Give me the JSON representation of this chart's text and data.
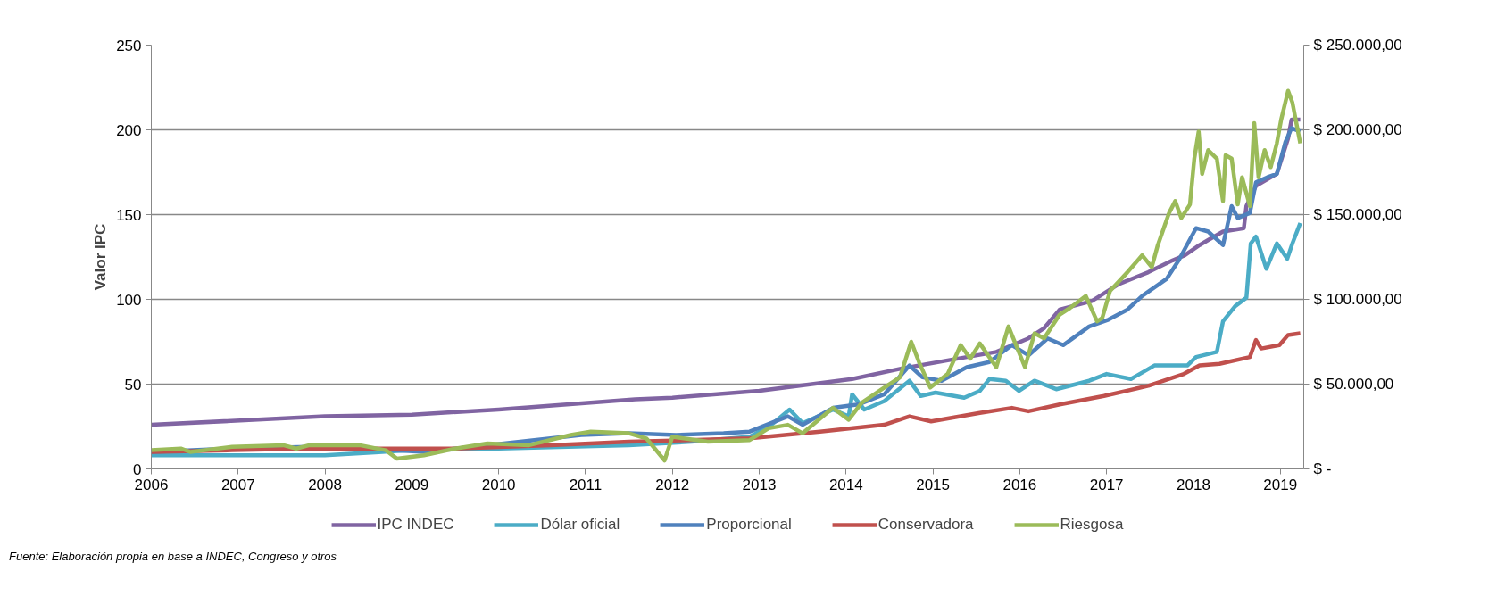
{
  "chart_data": {
    "type": "line",
    "ylabel": "Valor IPC",
    "xlim": [
      2006,
      2019.27
    ],
    "xticks": [
      2006,
      2007,
      2008,
      2009,
      2010,
      2011,
      2012,
      2013,
      2014,
      2015,
      2016,
      2017,
      2018,
      2019
    ],
    "ylim": [
      0,
      250
    ],
    "yticks": [
      0,
      50,
      100,
      150,
      200,
      250
    ],
    "y2lim": [
      0,
      250000
    ],
    "y2ticks": [
      {
        "value": 0,
        "label": "$ -"
      },
      {
        "value": 50000,
        "label": "$ 50.000,00"
      },
      {
        "value": 100000,
        "label": "$ 100.000,00"
      },
      {
        "value": 150000,
        "label": "$ 150.000,00"
      },
      {
        "value": 200000,
        "label": "$ 200.000,00"
      },
      {
        "value": 250000,
        "label": "$ 250.000,00"
      }
    ],
    "grid": "y",
    "legend": "bottom",
    "marker": "none",
    "line_style": "solid",
    "annotations": [
      "Fuente: Elaboración propia en base a INDEC, Congreso y otros"
    ],
    "series": [
      {
        "name": "IPC INDEC",
        "color": "#8064a2",
        "x": [
          2006,
          2008,
          2009,
          2010,
          2011.57,
          2012,
          2013,
          2014.07,
          2014.62,
          2015.17,
          2015.73,
          2016.1,
          2016.28,
          2016.46,
          2016.83,
          2017.14,
          2017.48,
          2017.76,
          2017.9,
          2018.07,
          2018.17,
          2018.34,
          2018.58,
          2018.61,
          2018.72,
          2018.96,
          2019.09,
          2019.13,
          2019.23
        ],
        "values": [
          26,
          31,
          32,
          35,
          41,
          42,
          46,
          53,
          59,
          64,
          69,
          77,
          83,
          94,
          99,
          109,
          116,
          123,
          126,
          132,
          135,
          140,
          142,
          155,
          167,
          174,
          195,
          206,
          206
        ]
      },
      {
        "name": "Dólar oficial",
        "color": "#4bacc6",
        "axis": "y2",
        "x": [
          2006,
          2008,
          2009,
          2010,
          2011.5,
          2012.22,
          2012.89,
          2013.14,
          2013.35,
          2013.5,
          2013.85,
          2014.03,
          2014.07,
          2014.21,
          2014.44,
          2014.73,
          2014.86,
          2015.03,
          2015.36,
          2015.54,
          2015.65,
          2015.84,
          2015.99,
          2016.17,
          2016.42,
          2016.8,
          2017.0,
          2017.28,
          2017.55,
          2017.93,
          2018.03,
          2018.27,
          2018.34,
          2018.48,
          2018.61,
          2018.66,
          2018.72,
          2018.84,
          2018.96,
          2019.08,
          2019.14,
          2019.23
        ],
        "values": [
          8000,
          8000,
          11000,
          12000,
          14000,
          16000,
          19000,
          26000,
          35000,
          27000,
          35000,
          31000,
          44000,
          35000,
          40000,
          52000,
          43000,
          45000,
          42000,
          46000,
          53000,
          52000,
          46000,
          52000,
          47000,
          52000,
          56000,
          53000,
          61000,
          61000,
          66000,
          69000,
          87000,
          96000,
          101000,
          133000,
          137000,
          118000,
          133000,
          124000,
          133000,
          145000
        ]
      },
      {
        "name": "Proporcional",
        "color": "#4f81bd",
        "axis": "y2",
        "x": [
          2006,
          2006.93,
          2007.82,
          2008.78,
          2009.14,
          2009.87,
          2010.95,
          2011.5,
          2012.04,
          2012.59,
          2012.89,
          2013.33,
          2013.5,
          2013.85,
          2014.14,
          2014.44,
          2014.73,
          2014.88,
          2015.1,
          2015.39,
          2015.65,
          2015.91,
          2016.1,
          2016.32,
          2016.5,
          2016.8,
          2017.02,
          2017.24,
          2017.41,
          2017.69,
          2017.83,
          2018.03,
          2018.17,
          2018.34,
          2018.44,
          2018.51,
          2018.65,
          2018.72,
          2018.85,
          2018.96,
          2019.06,
          2019.13,
          2019.23
        ],
        "values": [
          10000,
          12000,
          13000,
          11000,
          10000,
          14000,
          20000,
          21000,
          20000,
          21000,
          22000,
          31000,
          26000,
          36000,
          38000,
          44000,
          61000,
          54000,
          52000,
          60000,
          63000,
          73000,
          67000,
          77000,
          73000,
          84000,
          88000,
          94000,
          102000,
          112000,
          123000,
          142000,
          140000,
          132000,
          155000,
          148000,
          151000,
          169000,
          172000,
          174000,
          193000,
          201000,
          199000
        ]
      },
      {
        "name": "Conservadora",
        "color": "#c0504d",
        "axis": "y2",
        "x": [
          2006,
          2006.93,
          2007.82,
          2008.78,
          2009.5,
          2010.6,
          2011.5,
          2012.89,
          2013.7,
          2014.44,
          2014.73,
          2014.98,
          2015.54,
          2015.91,
          2016.1,
          2016.46,
          2016.97,
          2017.48,
          2017.89,
          2018.07,
          2018.3,
          2018.65,
          2018.72,
          2018.78,
          2018.99,
          2019.09,
          2019.23
        ],
        "values": [
          10000,
          11000,
          12000,
          12000,
          12000,
          14000,
          16000,
          18000,
          22000,
          26000,
          31000,
          28000,
          33000,
          36000,
          34000,
          38000,
          43000,
          49000,
          56000,
          61000,
          62000,
          66000,
          76000,
          71000,
          73000,
          79000,
          80000
        ]
      },
      {
        "name": "Riesgosa",
        "color": "#9bbb59",
        "axis": "y2",
        "x": [
          2006,
          2006.34,
          2006.45,
          2006.93,
          2007.52,
          2007.67,
          2007.82,
          2008.4,
          2008.7,
          2008.83,
          2009.14,
          2009.5,
          2009.87,
          2010.35,
          2010.83,
          2011.06,
          2011.5,
          2011.7,
          2011.91,
          2012.0,
          2012.41,
          2012.89,
          2013.11,
          2013.33,
          2013.5,
          2013.85,
          2014.03,
          2014.18,
          2014.44,
          2014.62,
          2014.75,
          2014.84,
          2014.97,
          2015.17,
          2015.32,
          2015.43,
          2015.54,
          2015.73,
          2015.87,
          2016.06,
          2016.17,
          2016.28,
          2016.46,
          2016.58,
          2016.76,
          2016.89,
          2016.95,
          2017.04,
          2017.24,
          2017.41,
          2017.52,
          2017.59,
          2017.72,
          2017.79,
          2017.86,
          2017.96,
          2018.01,
          2018.06,
          2018.1,
          2018.17,
          2018.27,
          2018.34,
          2018.37,
          2018.44,
          2018.51,
          2018.56,
          2018.65,
          2018.7,
          2018.75,
          2018.82,
          2018.89,
          2018.96,
          2019.01,
          2019.09,
          2019.14,
          2019.23
        ],
        "values": [
          11000,
          12000,
          10000,
          13000,
          14000,
          12000,
          14000,
          14000,
          11000,
          6000,
          8000,
          12000,
          15000,
          14000,
          20000,
          22000,
          21000,
          18000,
          5000,
          19000,
          16000,
          17000,
          24000,
          26000,
          21000,
          36000,
          29000,
          39000,
          48000,
          54000,
          75000,
          63000,
          48000,
          56000,
          73000,
          65000,
          74000,
          60000,
          84000,
          60000,
          80000,
          77000,
          91000,
          95000,
          102000,
          87000,
          89000,
          105000,
          116000,
          126000,
          119000,
          132000,
          151000,
          158000,
          148000,
          156000,
          183000,
          199000,
          174000,
          188000,
          183000,
          158000,
          185000,
          183000,
          156000,
          172000,
          155000,
          204000,
          172000,
          188000,
          178000,
          192000,
          206000,
          223000,
          216000,
          192000
        ]
      }
    ]
  }
}
